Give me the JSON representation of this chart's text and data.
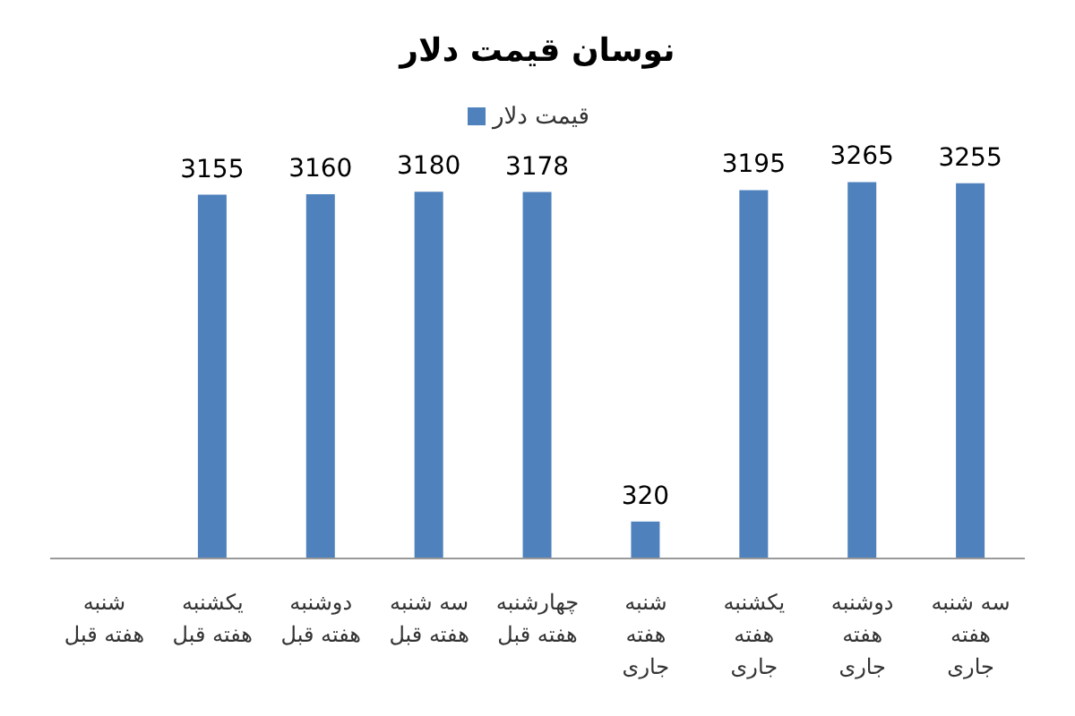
{
  "chart_data": {
    "type": "bar",
    "title": "نوسان قیمت دلار",
    "categories": [
      "شنبه هفته قبل",
      "یکشنبه هفته قبل",
      "دوشنبه هفته قبل",
      "سه شنبه هفته قبل",
      "چهارشنبه هفته قبل",
      "شنبه هفته جاری",
      "یکشنبه هفته جاری",
      "دوشنبه هفته جاری",
      "سه شنبه هفته جاری"
    ],
    "series": [
      {
        "name": "قیمت دلار",
        "color": "#4f81bd",
        "values": [
          null,
          3155,
          3160,
          3180,
          3178,
          320,
          3195,
          3265,
          3255
        ]
      }
    ],
    "data_labels": true,
    "legend": "top",
    "grid": false
  }
}
